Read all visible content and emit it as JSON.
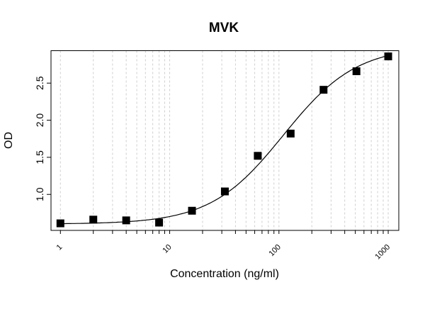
{
  "chart_data": {
    "type": "scatter",
    "title": "MVK",
    "xlabel": "Concentration (ng/ml)",
    "ylabel": "OD",
    "x_scale": "log",
    "xlim": [
      0.82,
      1250
    ],
    "ylim": [
      0.515,
      2.937
    ],
    "x_ticks": [
      1,
      10,
      100,
      1000
    ],
    "x_tick_labels": [
      "1",
      "10",
      "100",
      "1000"
    ],
    "y_ticks": [
      1.0,
      1.5,
      2.0,
      2.5
    ],
    "y_tick_labels": [
      "1.0",
      "1.5",
      "2.0",
      "2.5"
    ],
    "grid": "vertical dashed at log minor ticks",
    "marker": "filled square",
    "marker_color": "#000000",
    "points": {
      "x": [
        1,
        2,
        4,
        8,
        16,
        32,
        64,
        128,
        256,
        512,
        1000
      ],
      "y": [
        0.61,
        0.66,
        0.65,
        0.62,
        0.78,
        1.04,
        1.52,
        1.82,
        2.41,
        2.66,
        2.86
      ]
    },
    "fit_curve": {
      "model": "4PL",
      "bottom": 0.6,
      "top": 3.0,
      "ec50": 110,
      "hill": 1.3
    }
  }
}
